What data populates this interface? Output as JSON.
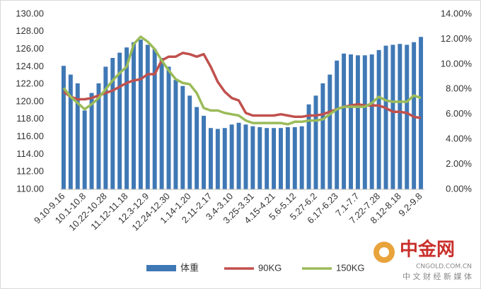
{
  "chart_data": {
    "type": "bar_line",
    "categories": [
      "9.10-9.16",
      null,
      null,
      "10.1-10.8",
      null,
      null,
      "10.22-10.28",
      null,
      null,
      "11.12-11.18",
      null,
      null,
      "12.3-12.9",
      null,
      null,
      "12.24-12.30",
      null,
      null,
      "1.14-1.20",
      null,
      null,
      "2.11-2.17",
      null,
      null,
      "3.4-3.10",
      null,
      null,
      "3.25-3.31",
      null,
      null,
      "4.15-4.21",
      null,
      null,
      "5.6-5.12",
      null,
      null,
      "5.27-6.2",
      null,
      null,
      "6.17-6.23",
      null,
      null,
      "7.1-7.7",
      null,
      null,
      "7.22-7.28",
      null,
      null,
      "8.12-8.18",
      null,
      null,
      "9.2-9.8"
    ],
    "series": [
      {
        "name": "体重",
        "color": "#3f78b5",
        "type": "bar",
        "values": [
          124.1,
          123.1,
          122.1,
          119.0,
          121.0,
          122.1,
          124.0,
          125.0,
          125.6,
          126.2,
          126.8,
          127.1,
          126.5,
          126.0,
          125.0,
          124.0,
          122.5,
          121.8,
          120.7,
          119.4,
          118.4,
          117.0,
          116.9,
          117.0,
          117.4,
          117.6,
          117.4,
          117.2,
          117.1,
          117.0,
          117.0,
          117.0,
          117.1,
          117.1,
          117.2,
          119.7,
          120.7,
          122.1,
          123.1,
          124.7,
          125.5,
          125.4,
          125.3,
          125.3,
          125.4,
          125.9,
          126.4,
          126.5,
          126.6,
          126.5,
          126.8,
          127.4
        ]
      },
      {
        "name": "90KG",
        "color": "#c0504d",
        "type": "line",
        "axis": "y2",
        "values": [
          7.8,
          7.4,
          7.2,
          7.2,
          7.3,
          7.5,
          7.7,
          7.9,
          8.2,
          8.5,
          8.7,
          8.8,
          9.2,
          9.2,
          10.3,
          10.6,
          10.6,
          10.9,
          10.8,
          10.6,
          10.8,
          9.8,
          8.6,
          7.8,
          7.3,
          7.1,
          6.1,
          5.9,
          5.9,
          5.9,
          5.9,
          6.0,
          5.9,
          5.8,
          5.8,
          5.9,
          5.9,
          6.0,
          6.2,
          6.4,
          6.6,
          6.7,
          6.8,
          6.7,
          6.7,
          6.7,
          6.5,
          6.2,
          6.2,
          6.1,
          5.8,
          5.7
        ]
      },
      {
        "name": "150KG",
        "color": "#9bbb59",
        "type": "line",
        "axis": "y2",
        "values": [
          8.1,
          7.4,
          6.9,
          6.4,
          6.8,
          7.3,
          8.0,
          8.7,
          9.3,
          9.8,
          11.6,
          12.2,
          11.8,
          11.2,
          10.3,
          9.5,
          8.8,
          8.5,
          8.4,
          7.7,
          6.5,
          6.3,
          6.3,
          6.1,
          6.0,
          5.9,
          5.5,
          5.3,
          5.3,
          5.3,
          5.3,
          5.3,
          5.2,
          5.4,
          5.4,
          5.5,
          5.5,
          5.6,
          6.0,
          6.4,
          6.6,
          6.6,
          6.6,
          6.6,
          6.9,
          7.4,
          7.1,
          7.0,
          7.0,
          7.0,
          7.5,
          7.3
        ]
      }
    ],
    "ylim": [
      110,
      130
    ],
    "yticks": [
      {
        "value": 110,
        "label": "110.00"
      },
      {
        "value": 112,
        "label": "112.00"
      },
      {
        "value": 114,
        "label": "114.00"
      },
      {
        "value": 116,
        "label": "116.00"
      },
      {
        "value": 118,
        "label": "118.00"
      },
      {
        "value": 120,
        "label": "120.00"
      },
      {
        "value": 122,
        "label": "122.00"
      },
      {
        "value": 124,
        "label": "124.00"
      },
      {
        "value": 126,
        "label": "126.00"
      },
      {
        "value": 128,
        "label": "128.00"
      },
      {
        "value": 130,
        "label": "130.00"
      }
    ],
    "y2lim": [
      0,
      14
    ],
    "y2ticks": [
      {
        "value": 0,
        "label": "0.00%"
      },
      {
        "value": 2,
        "label": "2.00%"
      },
      {
        "value": 4,
        "label": "4.00%"
      },
      {
        "value": 6,
        "label": "6.00%"
      },
      {
        "value": 8,
        "label": "8.00%"
      },
      {
        "value": 10,
        "label": "10.00%"
      },
      {
        "value": 12,
        "label": "12.00%"
      },
      {
        "value": 14,
        "label": "14.00%"
      }
    ],
    "grid": false,
    "legend": "bottom"
  },
  "watermark": {
    "brand": "中金网",
    "site": "CNGOLD.COM.CN",
    "tagline": "中 文 财 经 新 媒 体"
  }
}
